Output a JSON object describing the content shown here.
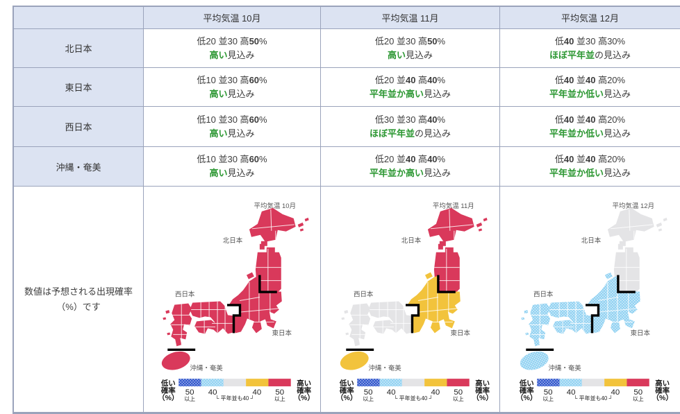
{
  "colors": {
    "red": "#d9395b",
    "yellow": "#f2c33c",
    "gray": "#e4e4e6",
    "light_blue": "#92d2f2",
    "dark_blue": "#2f55cc",
    "green": "#2c9732",
    "header_bg": "#dce3f2",
    "border": "#9aa3bb",
    "text": "#3d3d3d"
  },
  "header": {
    "columns": [
      "平均気温 10月",
      "平均気温 11月",
      "平均気温 12月"
    ]
  },
  "rows": [
    {
      "region": "北日本",
      "cells": [
        {
          "prob": [
            {
              "t": "低20 並30 高"
            },
            {
              "t": "50",
              "b": true
            },
            {
              "t": "%"
            }
          ],
          "outlook": [
            {
              "t": "高い",
              "em": true
            },
            {
              "t": "見込み"
            }
          ]
        },
        {
          "prob": [
            {
              "t": "低20 並30 高"
            },
            {
              "t": "50",
              "b": true
            },
            {
              "t": "%"
            }
          ],
          "outlook": [
            {
              "t": "高い",
              "em": true
            },
            {
              "t": "見込み"
            }
          ]
        },
        {
          "prob": [
            {
              "t": "低"
            },
            {
              "t": "40",
              "b": true
            },
            {
              "t": " 並30 高30%"
            }
          ],
          "outlook": [
            {
              "t": "ほぼ平年並",
              "em": true
            },
            {
              "t": "の見込み"
            }
          ]
        }
      ]
    },
    {
      "region": "東日本",
      "cells": [
        {
          "prob": [
            {
              "t": "低10 並30 高"
            },
            {
              "t": "60",
              "b": true
            },
            {
              "t": "%"
            }
          ],
          "outlook": [
            {
              "t": "高い",
              "em": true
            },
            {
              "t": "見込み"
            }
          ]
        },
        {
          "prob": [
            {
              "t": "低20 並"
            },
            {
              "t": "40",
              "b": true
            },
            {
              "t": " 高"
            },
            {
              "t": "40",
              "b": true
            },
            {
              "t": "%"
            }
          ],
          "outlook": [
            {
              "t": "平年並か高い",
              "em": true
            },
            {
              "t": "見込み"
            }
          ]
        },
        {
          "prob": [
            {
              "t": "低"
            },
            {
              "t": "40",
              "b": true
            },
            {
              "t": " 並"
            },
            {
              "t": "40",
              "b": true
            },
            {
              "t": " 高20%"
            }
          ],
          "outlook": [
            {
              "t": "平年並か低い",
              "em": true
            },
            {
              "t": "見込み"
            }
          ]
        }
      ]
    },
    {
      "region": "西日本",
      "cells": [
        {
          "prob": [
            {
              "t": "低10 並30 高"
            },
            {
              "t": "60",
              "b": true
            },
            {
              "t": "%"
            }
          ],
          "outlook": [
            {
              "t": "高い",
              "em": true
            },
            {
              "t": "見込み"
            }
          ]
        },
        {
          "prob": [
            {
              "t": "低30 並30 高"
            },
            {
              "t": "40",
              "b": true
            },
            {
              "t": "%"
            }
          ],
          "outlook": [
            {
              "t": "ほぼ平年並",
              "em": true
            },
            {
              "t": "の見込み"
            }
          ]
        },
        {
          "prob": [
            {
              "t": "低"
            },
            {
              "t": "40",
              "b": true
            },
            {
              "t": " 並"
            },
            {
              "t": "40",
              "b": true
            },
            {
              "t": " 高20%"
            }
          ],
          "outlook": [
            {
              "t": "平年並か低い",
              "em": true
            },
            {
              "t": "見込み"
            }
          ]
        }
      ]
    },
    {
      "region": "沖縄・奄美",
      "cells": [
        {
          "prob": [
            {
              "t": "低10 並30 高"
            },
            {
              "t": "60",
              "b": true
            },
            {
              "t": "%"
            }
          ],
          "outlook": [
            {
              "t": "高い",
              "em": true
            },
            {
              "t": "見込み"
            }
          ]
        },
        {
          "prob": [
            {
              "t": "低20 並"
            },
            {
              "t": "40",
              "b": true
            },
            {
              "t": " 高"
            },
            {
              "t": "40",
              "b": true
            },
            {
              "t": "%"
            }
          ],
          "outlook": [
            {
              "t": "平年並か高い",
              "em": true
            },
            {
              "t": "見込み"
            }
          ]
        },
        {
          "prob": [
            {
              "t": "低"
            },
            {
              "t": "40",
              "b": true
            },
            {
              "t": " 並"
            },
            {
              "t": "40",
              "b": true
            },
            {
              "t": " 高20%"
            }
          ],
          "outlook": [
            {
              "t": "平年並か低い",
              "em": true
            },
            {
              "t": "見込み"
            }
          ]
        }
      ]
    }
  ],
  "note": {
    "line1": "数値は予想される出現確率",
    "line2": "（%）です"
  },
  "maps": [
    {
      "title": "平均気温 10月",
      "fills": {
        "north": "red",
        "east": "red",
        "west": "red",
        "okinawa": "red"
      }
    },
    {
      "title": "平均気温 11月",
      "fills": {
        "north": "red",
        "east": "yellow",
        "west": "gray",
        "okinawa": "yellow"
      }
    },
    {
      "title": "平均気温 12月",
      "fills": {
        "north": "gray",
        "east": "light_blue_dots",
        "west": "light_blue_dots",
        "okinawa": "light_blue_dots"
      }
    }
  ],
  "map_labels": {
    "north": "北日本",
    "east": "東日本",
    "west": "西日本",
    "okinawa": "沖縄・奄美"
  },
  "legend": {
    "low_label": [
      "低い",
      "確率",
      "（%）"
    ],
    "high_label": [
      "高い",
      "確率",
      "（%）"
    ],
    "segments": [
      "dark_blue_dots",
      "light_blue_dots",
      "gray",
      "yellow",
      "red"
    ],
    "ticks": [
      {
        "num": "50",
        "sub": "以上"
      },
      {
        "num": "40",
        "sub": ""
      },
      {
        "num": "40",
        "sub": ""
      },
      {
        "num": "50",
        "sub": "以上"
      }
    ],
    "mid_label": "└ 平年並も40 ┘"
  }
}
